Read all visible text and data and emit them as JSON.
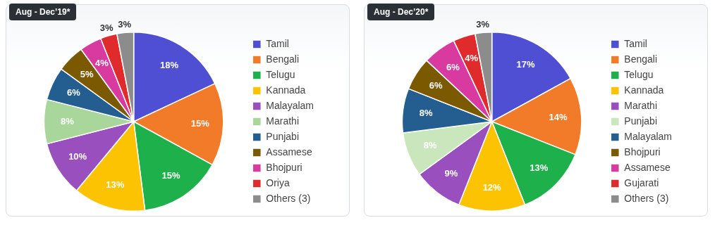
{
  "chart_data": [
    {
      "type": "pie",
      "title": "Aug - Dec’19*",
      "categories": [
        "Tamil",
        "Bengali",
        "Telugu",
        "Kannada",
        "Malayalam",
        "Marathi",
        "Punjabi",
        "Assamese",
        "Bhojpuri",
        "Oriya",
        "Others (3)"
      ],
      "values": [
        18,
        15,
        15,
        13,
        10,
        8,
        6,
        5,
        4,
        3,
        3
      ],
      "value_labels": [
        "18%",
        "15%",
        "15%",
        "13%",
        "10%",
        "8%",
        "6%",
        "5%",
        "4%",
        "3%",
        "3%"
      ],
      "colors": [
        "#4f4fd3",
        "#f27b2a",
        "#1db04b",
        "#fbc302",
        "#9a4fbf",
        "#a9d79b",
        "#245d90",
        "#7a5900",
        "#d83aa0",
        "#df2b2b",
        "#8c8c8c"
      ],
      "legend": "right"
    },
    {
      "type": "pie",
      "title": "Aug - Dec’20*",
      "categories": [
        "Tamil",
        "Bengali",
        "Telugu",
        "Kannada",
        "Marathi",
        "Punjabi",
        "Malayalam",
        "Bhojpuri",
        "Assamese",
        "Gujarati",
        "Others (3)"
      ],
      "values": [
        17,
        14,
        13,
        12,
        9,
        8,
        8,
        6,
        6,
        4,
        3
      ],
      "value_labels": [
        "17%",
        "14%",
        "13%",
        "12%",
        "9%",
        "8%",
        "8%",
        "6%",
        "6%",
        "4%",
        "3%"
      ],
      "colors": [
        "#4f4fd3",
        "#f27b2a",
        "#1db04b",
        "#fbc302",
        "#9a4fbf",
        "#c9e6bd",
        "#245d90",
        "#7a5900",
        "#d83aa0",
        "#df2b2b",
        "#8c8c8c"
      ],
      "legend": "right"
    }
  ]
}
